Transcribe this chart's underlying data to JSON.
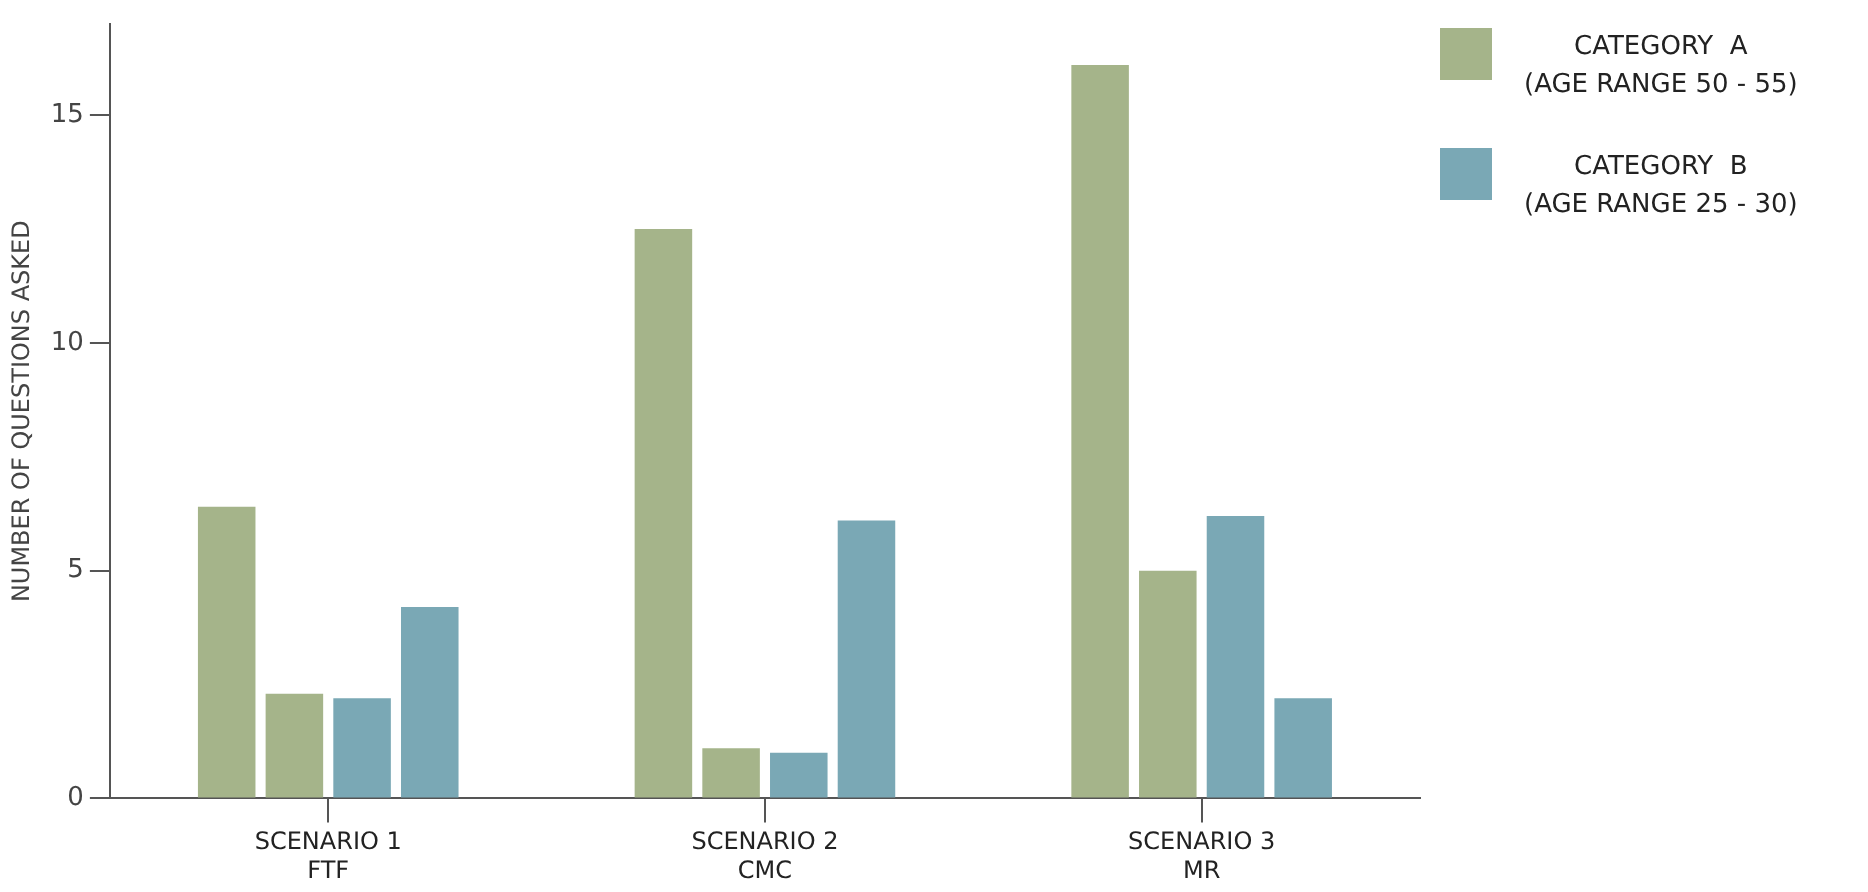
{
  "chart_data": {
    "type": "bar",
    "ylabel": "NUMBER OF QUESTIONS ASKED",
    "categories": [
      "SCENARIO 1\nFTF",
      "SCENARIO 2\nCMC",
      "SCENARIO 3\nMR"
    ],
    "series": [
      {
        "name": "CATEGORY  A\n(AGE RANGE 50 - 55)",
        "color": "#a5b48a",
        "values": [
          6.4,
          12.5,
          16.1
        ]
      },
      {
        "color": "#a5b48a",
        "values": [
          2.3,
          1.1,
          5.0
        ]
      },
      {
        "name": "CATEGORY  B\n(AGE RANGE 25 - 30)",
        "color": "#7aa8b5",
        "values": [
          2.2,
          1.0,
          6.2
        ]
      },
      {
        "color": "#7aa8b5",
        "values": [
          4.2,
          6.1,
          2.2
        ]
      }
    ],
    "ylim": [
      0,
      17
    ],
    "yticks": [
      0,
      5,
      10,
      15
    ],
    "grid": false,
    "legend": "top right"
  }
}
